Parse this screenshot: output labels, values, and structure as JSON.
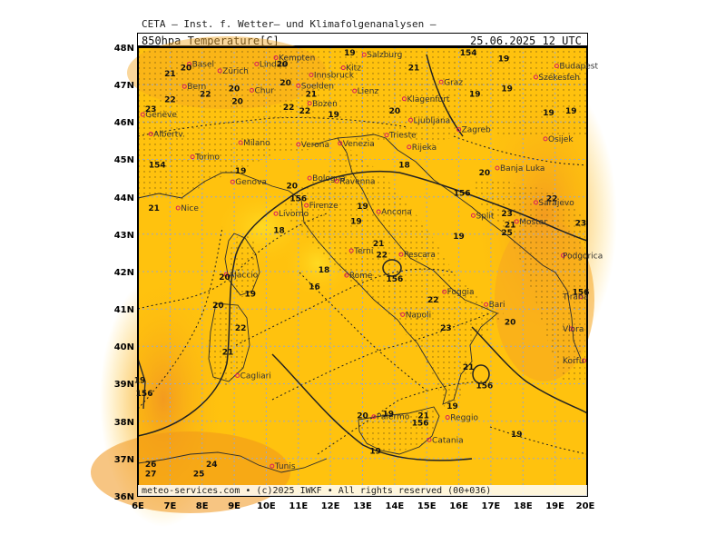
{
  "header": {
    "title": "CETA — Inst. f. Wetter— und Klimafolgenanalysen —",
    "field": "850hpa Temperature[C]",
    "datetime": "25.06.2025 12 UTC"
  },
  "footer": "meteo-services.com • (c)2025 IWKF • All rights reserved (00+036)",
  "axes": {
    "lat_labels": [
      "48N",
      "47N",
      "46N",
      "45N",
      "44N",
      "43N",
      "42N",
      "41N",
      "40N",
      "39N",
      "38N",
      "37N",
      "36N"
    ],
    "lon_labels": [
      "6E",
      "7E",
      "8E",
      "9E",
      "10E",
      "11E",
      "12E",
      "13E",
      "14E",
      "15E",
      "16E",
      "17E",
      "18E",
      "19E",
      "20E"
    ]
  },
  "colors": {
    "base": "#FFC20E",
    "warm": "#F5A623",
    "hot": "#EE8A1A",
    "cool": "#FFD21F",
    "grid": "#9aa8c8"
  },
  "cities": [
    {
      "name": "Salzburg",
      "lon": 13.05,
      "lat": 47.8
    },
    {
      "name": "Budapest",
      "lon": 19.05,
      "lat": 47.5
    },
    {
      "name": "Kempten",
      "lon": 10.3,
      "lat": 47.72
    },
    {
      "name": "Basel",
      "lon": 7.6,
      "lat": 47.55
    },
    {
      "name": "Zürich",
      "lon": 8.55,
      "lat": 47.37
    },
    {
      "name": "Lindau",
      "lon": 9.7,
      "lat": 47.55
    },
    {
      "name": "Innsbruck",
      "lon": 11.4,
      "lat": 47.26
    },
    {
      "name": "Kitz",
      "lon": 12.4,
      "lat": 47.45
    },
    {
      "name": "Székesfeh",
      "lon": 18.4,
      "lat": 47.2
    },
    {
      "name": "Bern",
      "lon": 7.45,
      "lat": 46.95
    },
    {
      "name": "Graz",
      "lon": 15.45,
      "lat": 47.07
    },
    {
      "name": "Chur",
      "lon": 9.55,
      "lat": 46.85
    },
    {
      "name": "Soelden",
      "lon": 11.0,
      "lat": 46.97
    },
    {
      "name": "Lienz",
      "lon": 12.75,
      "lat": 46.83
    },
    {
      "name": "Bozen",
      "lon": 11.35,
      "lat": 46.5
    },
    {
      "name": "Klagenfurt",
      "lon": 14.3,
      "lat": 46.62
    },
    {
      "name": "Genève",
      "lon": 6.15,
      "lat": 46.2
    },
    {
      "name": "Ljubljana",
      "lon": 14.5,
      "lat": 46.05
    },
    {
      "name": "Zagreb",
      "lon": 16.0,
      "lat": 45.8
    },
    {
      "name": "Albertv.",
      "lon": 6.4,
      "lat": 45.68
    },
    {
      "name": "Trieste",
      "lon": 13.75,
      "lat": 45.65
    },
    {
      "name": "Milano",
      "lon": 9.2,
      "lat": 45.45
    },
    {
      "name": "Venezia",
      "lon": 12.3,
      "lat": 45.43
    },
    {
      "name": "Rijeka",
      "lon": 14.45,
      "lat": 45.33
    },
    {
      "name": "Osijek",
      "lon": 18.7,
      "lat": 45.55
    },
    {
      "name": "Verona",
      "lon": 11.0,
      "lat": 45.4
    },
    {
      "name": "Torino",
      "lon": 7.7,
      "lat": 45.07
    },
    {
      "name": "Bologna",
      "lon": 11.35,
      "lat": 44.5
    },
    {
      "name": "Banja Luka",
      "lon": 17.2,
      "lat": 44.77
    },
    {
      "name": "Genova",
      "lon": 8.95,
      "lat": 44.4
    },
    {
      "name": "Ravenna",
      "lon": 12.2,
      "lat": 44.42
    },
    {
      "name": "Nice",
      "lon": 7.25,
      "lat": 43.7
    },
    {
      "name": "Sarajevo",
      "lon": 18.4,
      "lat": 43.85
    },
    {
      "name": "Firenze",
      "lon": 11.25,
      "lat": 43.77
    },
    {
      "name": "Split",
      "lon": 16.45,
      "lat": 43.5
    },
    {
      "name": "Ancona",
      "lon": 13.5,
      "lat": 43.6
    },
    {
      "name": "Mostar",
      "lon": 17.8,
      "lat": 43.34
    },
    {
      "name": "Livorno",
      "lon": 10.3,
      "lat": 43.55
    },
    {
      "name": "Podgorica",
      "lon": 19.25,
      "lat": 42.43
    },
    {
      "name": "Terni",
      "lon": 12.65,
      "lat": 42.56
    },
    {
      "name": "Pescara",
      "lon": 14.2,
      "lat": 42.46
    },
    {
      "name": "Ajaccio",
      "lon": 8.75,
      "lat": 41.92
    },
    {
      "name": "Rome",
      "lon": 12.5,
      "lat": 41.9
    },
    {
      "name": "Tirana",
      "lon": 19.8,
      "lat": 41.33
    },
    {
      "name": "Foggia",
      "lon": 15.55,
      "lat": 41.46
    },
    {
      "name": "Bari",
      "lon": 16.85,
      "lat": 41.12
    },
    {
      "name": "Napoli",
      "lon": 14.25,
      "lat": 40.85
    },
    {
      "name": "Vlora",
      "lon": 19.5,
      "lat": 40.47
    },
    {
      "name": "Korfu",
      "lon": 19.9,
      "lat": 39.62
    },
    {
      "name": "Cagliari",
      "lon": 9.1,
      "lat": 39.22
    },
    {
      "name": "Reggio",
      "lon": 15.65,
      "lat": 38.1
    },
    {
      "name": "Palermo",
      "lon": 13.35,
      "lat": 38.12
    },
    {
      "name": "Catania",
      "lon": 15.08,
      "lat": 37.5
    },
    {
      "name": "Tunis",
      "lon": 10.18,
      "lat": 36.8
    }
  ],
  "isotherm_labels": [
    {
      "t": "19",
      "lon": 12.6,
      "lat": 47.85
    },
    {
      "t": "21",
      "lon": 14.6,
      "lat": 47.45
    },
    {
      "t": "154",
      "lon": 16.3,
      "lat": 47.85
    },
    {
      "t": "19",
      "lon": 17.4,
      "lat": 47.7
    },
    {
      "t": "20",
      "lon": 7.5,
      "lat": 47.45
    },
    {
      "t": "20",
      "lon": 10.5,
      "lat": 47.55
    },
    {
      "t": "21",
      "lon": 7.0,
      "lat": 47.3
    },
    {
      "t": "20",
      "lon": 10.6,
      "lat": 47.05
    },
    {
      "t": "22",
      "lon": 8.1,
      "lat": 46.75
    },
    {
      "t": "20",
      "lon": 9.0,
      "lat": 46.9
    },
    {
      "t": "21",
      "lon": 11.4,
      "lat": 46.75
    },
    {
      "t": "22",
      "lon": 7.0,
      "lat": 46.6
    },
    {
      "t": "19",
      "lon": 16.5,
      "lat": 46.75
    },
    {
      "t": "19",
      "lon": 17.5,
      "lat": 46.9
    },
    {
      "t": "20",
      "lon": 9.1,
      "lat": 46.55
    },
    {
      "t": "22",
      "lon": 10.7,
      "lat": 46.4
    },
    {
      "t": "22",
      "lon": 11.2,
      "lat": 46.3
    },
    {
      "t": "19",
      "lon": 12.1,
      "lat": 46.2
    },
    {
      "t": "20",
      "lon": 14.0,
      "lat": 46.3
    },
    {
      "t": "23",
      "lon": 6.4,
      "lat": 46.35
    },
    {
      "t": "19",
      "lon": 18.8,
      "lat": 46.25
    },
    {
      "t": "19",
      "lon": 19.5,
      "lat": 46.3
    },
    {
      "t": "154",
      "lon": 6.6,
      "lat": 44.85
    },
    {
      "t": "18",
      "lon": 14.3,
      "lat": 44.85
    },
    {
      "t": "19",
      "lon": 9.2,
      "lat": 44.7
    },
    {
      "t": "20",
      "lon": 16.8,
      "lat": 44.65
    },
    {
      "t": "20",
      "lon": 10.8,
      "lat": 44.3
    },
    {
      "t": "156",
      "lon": 11.0,
      "lat": 43.95
    },
    {
      "t": "156",
      "lon": 16.1,
      "lat": 44.1
    },
    {
      "t": "21",
      "lon": 6.5,
      "lat": 43.7
    },
    {
      "t": "19",
      "lon": 13.0,
      "lat": 43.75
    },
    {
      "t": "22",
      "lon": 18.9,
      "lat": 43.95
    },
    {
      "t": "23",
      "lon": 17.5,
      "lat": 43.55
    },
    {
      "t": "21",
      "lon": 17.6,
      "lat": 43.25
    },
    {
      "t": "23",
      "lon": 19.8,
      "lat": 43.3
    },
    {
      "t": "19",
      "lon": 12.8,
      "lat": 43.35
    },
    {
      "t": "18",
      "lon": 10.4,
      "lat": 43.1
    },
    {
      "t": "25",
      "lon": 17.5,
      "lat": 43.05
    },
    {
      "t": "19",
      "lon": 16.0,
      "lat": 42.95
    },
    {
      "t": "21",
      "lon": 13.5,
      "lat": 42.75
    },
    {
      "t": "22",
      "lon": 13.6,
      "lat": 42.45
    },
    {
      "t": "18",
      "lon": 11.8,
      "lat": 42.05
    },
    {
      "t": "20",
      "lon": 8.7,
      "lat": 41.85
    },
    {
      "t": "156",
      "lon": 14.0,
      "lat": 41.8
    },
    {
      "t": "16",
      "lon": 11.5,
      "lat": 41.6
    },
    {
      "t": "19",
      "lon": 9.5,
      "lat": 41.4
    },
    {
      "t": "22",
      "lon": 15.2,
      "lat": 41.25
    },
    {
      "t": "156",
      "lon": 19.9,
      "lat": 41.45
    },
    {
      "t": "20",
      "lon": 8.5,
      "lat": 41.1
    },
    {
      "t": "20",
      "lon": 17.6,
      "lat": 40.65
    },
    {
      "t": "22",
      "lon": 9.2,
      "lat": 40.5
    },
    {
      "t": "23",
      "lon": 15.6,
      "lat": 40.5
    },
    {
      "t": "21",
      "lon": 8.8,
      "lat": 39.85
    },
    {
      "t": "21",
      "lon": 16.3,
      "lat": 39.45
    },
    {
      "t": "19",
      "lon": 6.0,
      "lat": 39.1
    },
    {
      "t": "156",
      "lon": 16.8,
      "lat": 38.95
    },
    {
      "t": "156",
      "lon": 6.2,
      "lat": 38.75
    },
    {
      "t": "19",
      "lon": 15.8,
      "lat": 38.4
    },
    {
      "t": "20",
      "lon": 13.0,
      "lat": 38.15
    },
    {
      "t": "19",
      "lon": 13.8,
      "lat": 38.2
    },
    {
      "t": "21",
      "lon": 14.9,
      "lat": 38.15
    },
    {
      "t": "156",
      "lon": 14.8,
      "lat": 37.95
    },
    {
      "t": "19",
      "lon": 17.8,
      "lat": 37.65
    },
    {
      "t": "19",
      "lon": 13.4,
      "lat": 37.2
    },
    {
      "t": "26",
      "lon": 6.4,
      "lat": 36.85
    },
    {
      "t": "27",
      "lon": 6.4,
      "lat": 36.6
    },
    {
      "t": "25",
      "lon": 7.9,
      "lat": 36.6
    },
    {
      "t": "24",
      "lon": 8.3,
      "lat": 36.85
    }
  ]
}
